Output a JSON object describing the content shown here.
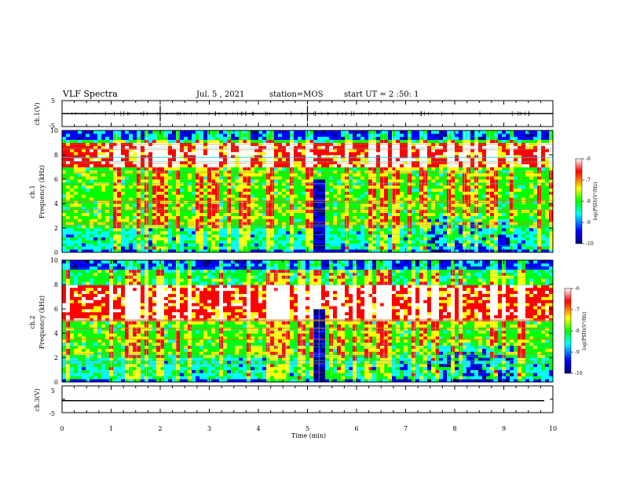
{
  "header": {
    "title": "VLF Spectra",
    "date": "Jul. 5 , 2021",
    "station": "station=MOS",
    "start": "start UT = 2 :50: 1"
  },
  "chart_data": [
    {
      "type": "line",
      "panel": "ch1-waveform",
      "ylabel": "ch.1(V)",
      "ylim": [
        -5,
        5
      ],
      "yticks": [
        "5",
        "-5"
      ],
      "baseline": 0
    },
    {
      "type": "heatmap",
      "panel": "ch1-spectrogram",
      "ylabel": "ch.1\nFrequency (kHz)",
      "ylim": [
        0,
        10
      ],
      "yticks": [
        "0",
        "2",
        "4",
        "6",
        "8",
        "10"
      ],
      "xlim": [
        0,
        10
      ],
      "dark_gap_minutes": [
        5.1,
        5.35
      ],
      "intense_bands_khz": [
        7.0,
        9.0
      ],
      "colorbar": {
        "label": "log(PSD)(V²/Hz)",
        "range": [
          -10,
          -6
        ],
        "ticks": [
          "-6",
          "-7",
          "-8",
          "-9",
          "-10"
        ],
        "colors": [
          "#000080",
          "#0000ff",
          "#00ffff",
          "#00ff00",
          "#ffff00",
          "#ff0000",
          "#ffffff"
        ]
      }
    },
    {
      "type": "heatmap",
      "panel": "ch2-spectrogram",
      "ylabel": "ch.2\nFrequency (kHz)",
      "ylim": [
        0,
        10
      ],
      "yticks": [
        "0",
        "2",
        "4",
        "6",
        "8",
        "10"
      ],
      "xlim": [
        0,
        10
      ],
      "dark_gap_minutes": [
        5.1,
        5.35
      ],
      "intense_bands_khz": [
        5.0,
        8.0
      ],
      "colorbar": {
        "label": "log(PSD)(V²/Hz)",
        "range": [
          -10,
          -6
        ],
        "ticks": [
          "-6",
          "-7",
          "-8",
          "-9",
          "-10"
        ],
        "colors": [
          "#000080",
          "#0000ff",
          "#00ffff",
          "#00ff00",
          "#ffff00",
          "#ff0000",
          "#ffffff"
        ]
      }
    },
    {
      "type": "line",
      "panel": "ch3-waveform",
      "ylabel": "ch.3(V)",
      "ylim": [
        -5,
        5
      ],
      "yticks": [
        "5",
        "-5"
      ],
      "baseline": -0.5
    }
  ],
  "xaxis": {
    "label": "Time (min)",
    "ticks": [
      "0",
      "1",
      "2",
      "3",
      "4",
      "5",
      "6",
      "7",
      "8",
      "9",
      "10"
    ]
  }
}
